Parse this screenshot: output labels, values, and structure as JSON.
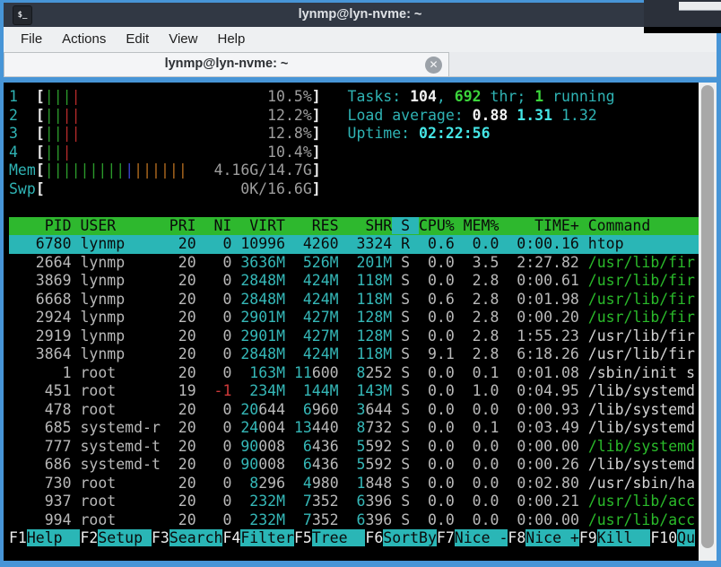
{
  "window": {
    "title": "lynmp@lyn-nvme: ~",
    "icon_glyph": "$_",
    "tab_title": "lynmp@lyn-nvme: ~",
    "close_glyph": "✕"
  },
  "menu": {
    "items": [
      "File",
      "Actions",
      "Edit",
      "View",
      "Help"
    ]
  },
  "colors": {
    "accent_blue": "#4795d7",
    "titlebar": "#313844",
    "menubar_bg": "#eef0f2",
    "header_green": "#2eb82e",
    "selected_teal": "#2ab6b6",
    "text_cyan": "#2fb3b4",
    "text_green": "#2abb2a",
    "text_red": "#cf3a3a",
    "bar_blue": "#3944cf",
    "bar_orange": "#b06a1e"
  },
  "htop": {
    "meters": [
      {
        "label": "1",
        "bars": [
          "g",
          "g",
          "g",
          "r"
        ],
        "value": "10.5%"
      },
      {
        "label": "2",
        "bars": [
          "g",
          "g",
          "r",
          "r"
        ],
        "value": "12.2%"
      },
      {
        "label": "3",
        "bars": [
          "g",
          "g",
          "r",
          "r"
        ],
        "value": "12.8%"
      },
      {
        "label": "4",
        "bars": [
          "g",
          "g",
          "r"
        ],
        "value": "10.4%"
      },
      {
        "label": "Mem",
        "bars": [
          "g",
          "g",
          "g",
          "g",
          "g",
          "g",
          "g",
          "g",
          "g",
          "b",
          "o",
          "o",
          "o",
          "o",
          "o",
          "o"
        ],
        "value": "4.16G/14.7G"
      },
      {
        "label": "Swp",
        "bars": [],
        "value": "0K/16.6G"
      }
    ],
    "info_lines": [
      [
        [
          "Tasks: ",
          "c"
        ],
        [
          "104",
          "bw"
        ],
        [
          ", ",
          "c"
        ],
        [
          "692",
          "bg2"
        ],
        [
          " thr; ",
          "c"
        ],
        [
          "1",
          "bg2"
        ],
        [
          " running",
          "c"
        ]
      ],
      [
        [
          "Load average: ",
          "c"
        ],
        [
          "0.88 ",
          "bw"
        ],
        [
          "1.31 ",
          "bc"
        ],
        [
          "1.32",
          "c"
        ]
      ],
      [
        [
          "Uptime: ",
          "c"
        ],
        [
          "02:22:56",
          "bc"
        ]
      ]
    ],
    "columns": [
      "PID",
      "USER",
      "PRI",
      "NI",
      "VIRT",
      "RES",
      "SHR",
      "S",
      "CPU%",
      "MEM%",
      "TIME+",
      "Command"
    ],
    "sort_column": "S",
    "rows": [
      {
        "pid": "6780",
        "user": "lynmp",
        "pri": "20",
        "ni": "0",
        "virt": "10996",
        "res": "4260",
        "shr": "3324",
        "s": "R",
        "cpu": "0.6",
        "mem": "0.0",
        "time": "0:00.16",
        "cmd": "htop",
        "cmd_color": "w",
        "selected": true
      },
      {
        "pid": "2664",
        "user": "lynmp",
        "pri": "20",
        "ni": "0",
        "virt": "3636M",
        "res": "526M",
        "shr": "201M",
        "s": "S",
        "cpu": "0.0",
        "mem": "3.5",
        "time": "2:27.82",
        "cmd": "/usr/lib/fir",
        "cmd_color": "g",
        "selected": false
      },
      {
        "pid": "3869",
        "user": "lynmp",
        "pri": "20",
        "ni": "0",
        "virt": "2848M",
        "res": "424M",
        "shr": "118M",
        "s": "S",
        "cpu": "0.0",
        "mem": "2.8",
        "time": "0:00.61",
        "cmd": "/usr/lib/fir",
        "cmd_color": "g",
        "selected": false
      },
      {
        "pid": "6668",
        "user": "lynmp",
        "pri": "20",
        "ni": "0",
        "virt": "2848M",
        "res": "424M",
        "shr": "118M",
        "s": "S",
        "cpu": "0.6",
        "mem": "2.8",
        "time": "0:01.98",
        "cmd": "/usr/lib/fir",
        "cmd_color": "g",
        "selected": false
      },
      {
        "pid": "2924",
        "user": "lynmp",
        "pri": "20",
        "ni": "0",
        "virt": "2901M",
        "res": "427M",
        "shr": "128M",
        "s": "S",
        "cpu": "0.0",
        "mem": "2.8",
        "time": "0:00.20",
        "cmd": "/usr/lib/fir",
        "cmd_color": "g",
        "selected": false
      },
      {
        "pid": "2919",
        "user": "lynmp",
        "pri": "20",
        "ni": "0",
        "virt": "2901M",
        "res": "427M",
        "shr": "128M",
        "s": "S",
        "cpu": "0.0",
        "mem": "2.8",
        "time": "1:55.23",
        "cmd": "/usr/lib/fir",
        "cmd_color": "w",
        "selected": false
      },
      {
        "pid": "3864",
        "user": "lynmp",
        "pri": "20",
        "ni": "0",
        "virt": "2848M",
        "res": "424M",
        "shr": "118M",
        "s": "S",
        "cpu": "9.1",
        "mem": "2.8",
        "time": "6:18.26",
        "cmd": "/usr/lib/fir",
        "cmd_color": "w",
        "selected": false
      },
      {
        "pid": "1",
        "user": "root",
        "pri": "20",
        "ni": "0",
        "virt": "163M",
        "res": "11600",
        "shr": "8252",
        "s": "S",
        "cpu": "0.0",
        "mem": "0.1",
        "time": "0:01.08",
        "cmd": "/sbin/init s",
        "cmd_color": "w",
        "selected": false
      },
      {
        "pid": "451",
        "user": "root",
        "pri": "19",
        "ni": "-1",
        "virt": "234M",
        "res": "144M",
        "shr": "143M",
        "s": "S",
        "cpu": "0.0",
        "mem": "1.0",
        "time": "0:04.95",
        "cmd": "/lib/systemd",
        "cmd_color": "w",
        "selected": false
      },
      {
        "pid": "478",
        "user": "root",
        "pri": "20",
        "ni": "0",
        "virt": "20644",
        "res": "6960",
        "shr": "3644",
        "s": "S",
        "cpu": "0.0",
        "mem": "0.0",
        "time": "0:00.93",
        "cmd": "/lib/systemd",
        "cmd_color": "w",
        "selected": false
      },
      {
        "pid": "685",
        "user": "systemd-r",
        "pri": "20",
        "ni": "0",
        "virt": "24004",
        "res": "13440",
        "shr": "8732",
        "s": "S",
        "cpu": "0.0",
        "mem": "0.1",
        "time": "0:03.49",
        "cmd": "/lib/systemd",
        "cmd_color": "w",
        "selected": false
      },
      {
        "pid": "777",
        "user": "systemd-t",
        "pri": "20",
        "ni": "0",
        "virt": "90008",
        "res": "6436",
        "shr": "5592",
        "s": "S",
        "cpu": "0.0",
        "mem": "0.0",
        "time": "0:00.00",
        "cmd": "/lib/systemd",
        "cmd_color": "g",
        "selected": false
      },
      {
        "pid": "686",
        "user": "systemd-t",
        "pri": "20",
        "ni": "0",
        "virt": "90008",
        "res": "6436",
        "shr": "5592",
        "s": "S",
        "cpu": "0.0",
        "mem": "0.0",
        "time": "0:00.26",
        "cmd": "/lib/systemd",
        "cmd_color": "w",
        "selected": false
      },
      {
        "pid": "730",
        "user": "root",
        "pri": "20",
        "ni": "0",
        "virt": "8296",
        "res": "4980",
        "shr": "1848",
        "s": "S",
        "cpu": "0.0",
        "mem": "0.0",
        "time": "0:02.80",
        "cmd": "/usr/sbin/ha",
        "cmd_color": "w",
        "selected": false
      },
      {
        "pid": "937",
        "user": "root",
        "pri": "20",
        "ni": "0",
        "virt": "232M",
        "res": "7352",
        "shr": "6396",
        "s": "S",
        "cpu": "0.0",
        "mem": "0.0",
        "time": "0:00.21",
        "cmd": "/usr/lib/acc",
        "cmd_color": "g",
        "selected": false
      },
      {
        "pid": "994",
        "user": "root",
        "pri": "20",
        "ni": "0",
        "virt": "232M",
        "res": "7352",
        "shr": "6396",
        "s": "S",
        "cpu": "0.0",
        "mem": "0.0",
        "time": "0:00.00",
        "cmd": "/usr/lib/acc",
        "cmd_color": "g",
        "selected": false
      }
    ],
    "fkeys": [
      [
        "F1",
        "Help  "
      ],
      [
        "F2",
        "Setup "
      ],
      [
        "F3",
        "Search"
      ],
      [
        "F4",
        "Filter"
      ],
      [
        "F5",
        "Tree  "
      ],
      [
        "F6",
        "SortBy"
      ],
      [
        "F7",
        "Nice -"
      ],
      [
        "F8",
        "Nice +"
      ],
      [
        "F9",
        "Kill  "
      ],
      [
        "F10",
        "Qu"
      ]
    ]
  }
}
